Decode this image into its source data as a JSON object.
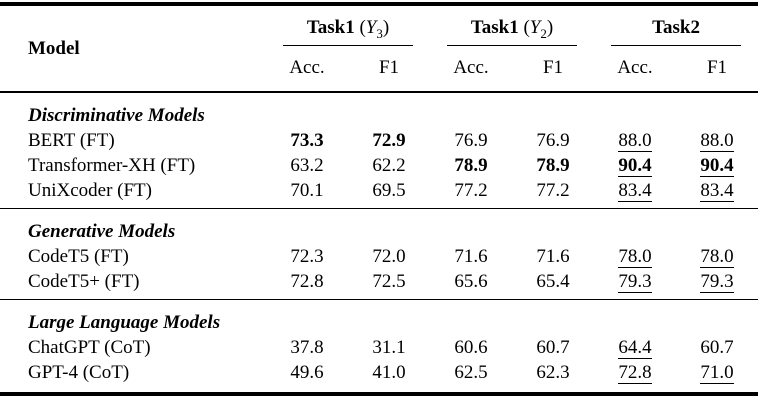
{
  "page": {
    "background_color": "#ffffff",
    "text_color": "#000000",
    "rule_color": "#000000"
  },
  "table": {
    "header": {
      "model_label": "Model",
      "groups": [
        {
          "name": "Task1",
          "open": " (",
          "var": "Y",
          "sub": "3",
          "close": ")"
        },
        {
          "name": "Task1",
          "open": " (",
          "var": "Y",
          "sub": "2",
          "close": ")"
        },
        {
          "name": "Task2",
          "open": "",
          "var": "",
          "sub": "",
          "close": ""
        }
      ],
      "subcols": [
        "Acc.",
        "F1"
      ]
    },
    "sections": [
      {
        "title": "Discriminative Models",
        "rows": [
          {
            "model": "BERT (FT)",
            "v": [
              "73.3",
              "72.9",
              "76.9",
              "76.9",
              "88.0",
              "88.0"
            ]
          },
          {
            "model": "Transformer-XH (FT)",
            "v": [
              "63.2",
              "62.2",
              "78.9",
              "78.9",
              "90.4",
              "90.4"
            ]
          },
          {
            "model": "UniXcoder (FT)",
            "v": [
              "70.1",
              "69.5",
              "77.2",
              "77.2",
              "83.4",
              "83.4"
            ]
          }
        ]
      },
      {
        "title": "Generative Models",
        "rows": [
          {
            "model": "CodeT5 (FT)",
            "v": [
              "72.3",
              "72.0",
              "71.6",
              "71.6",
              "78.0",
              "78.0"
            ]
          },
          {
            "model": "CodeT5+ (FT)",
            "v": [
              "72.8",
              "72.5",
              "65.6",
              "65.4",
              "79.3",
              "79.3"
            ]
          }
        ]
      },
      {
        "title": "Large Language Models",
        "rows": [
          {
            "model": "ChatGPT (CoT)",
            "v": [
              "37.8",
              "31.1",
              "60.6",
              "60.7",
              "64.4",
              "60.7"
            ]
          },
          {
            "model": "GPT-4 (CoT)",
            "v": [
              "49.6",
              "41.0",
              "62.5",
              "62.3",
              "72.8",
              "71.0"
            ]
          }
        ]
      }
    ],
    "emphasis_legend": {
      "bold": "best result per column",
      "underline": "Task2 highlighted results"
    }
  }
}
